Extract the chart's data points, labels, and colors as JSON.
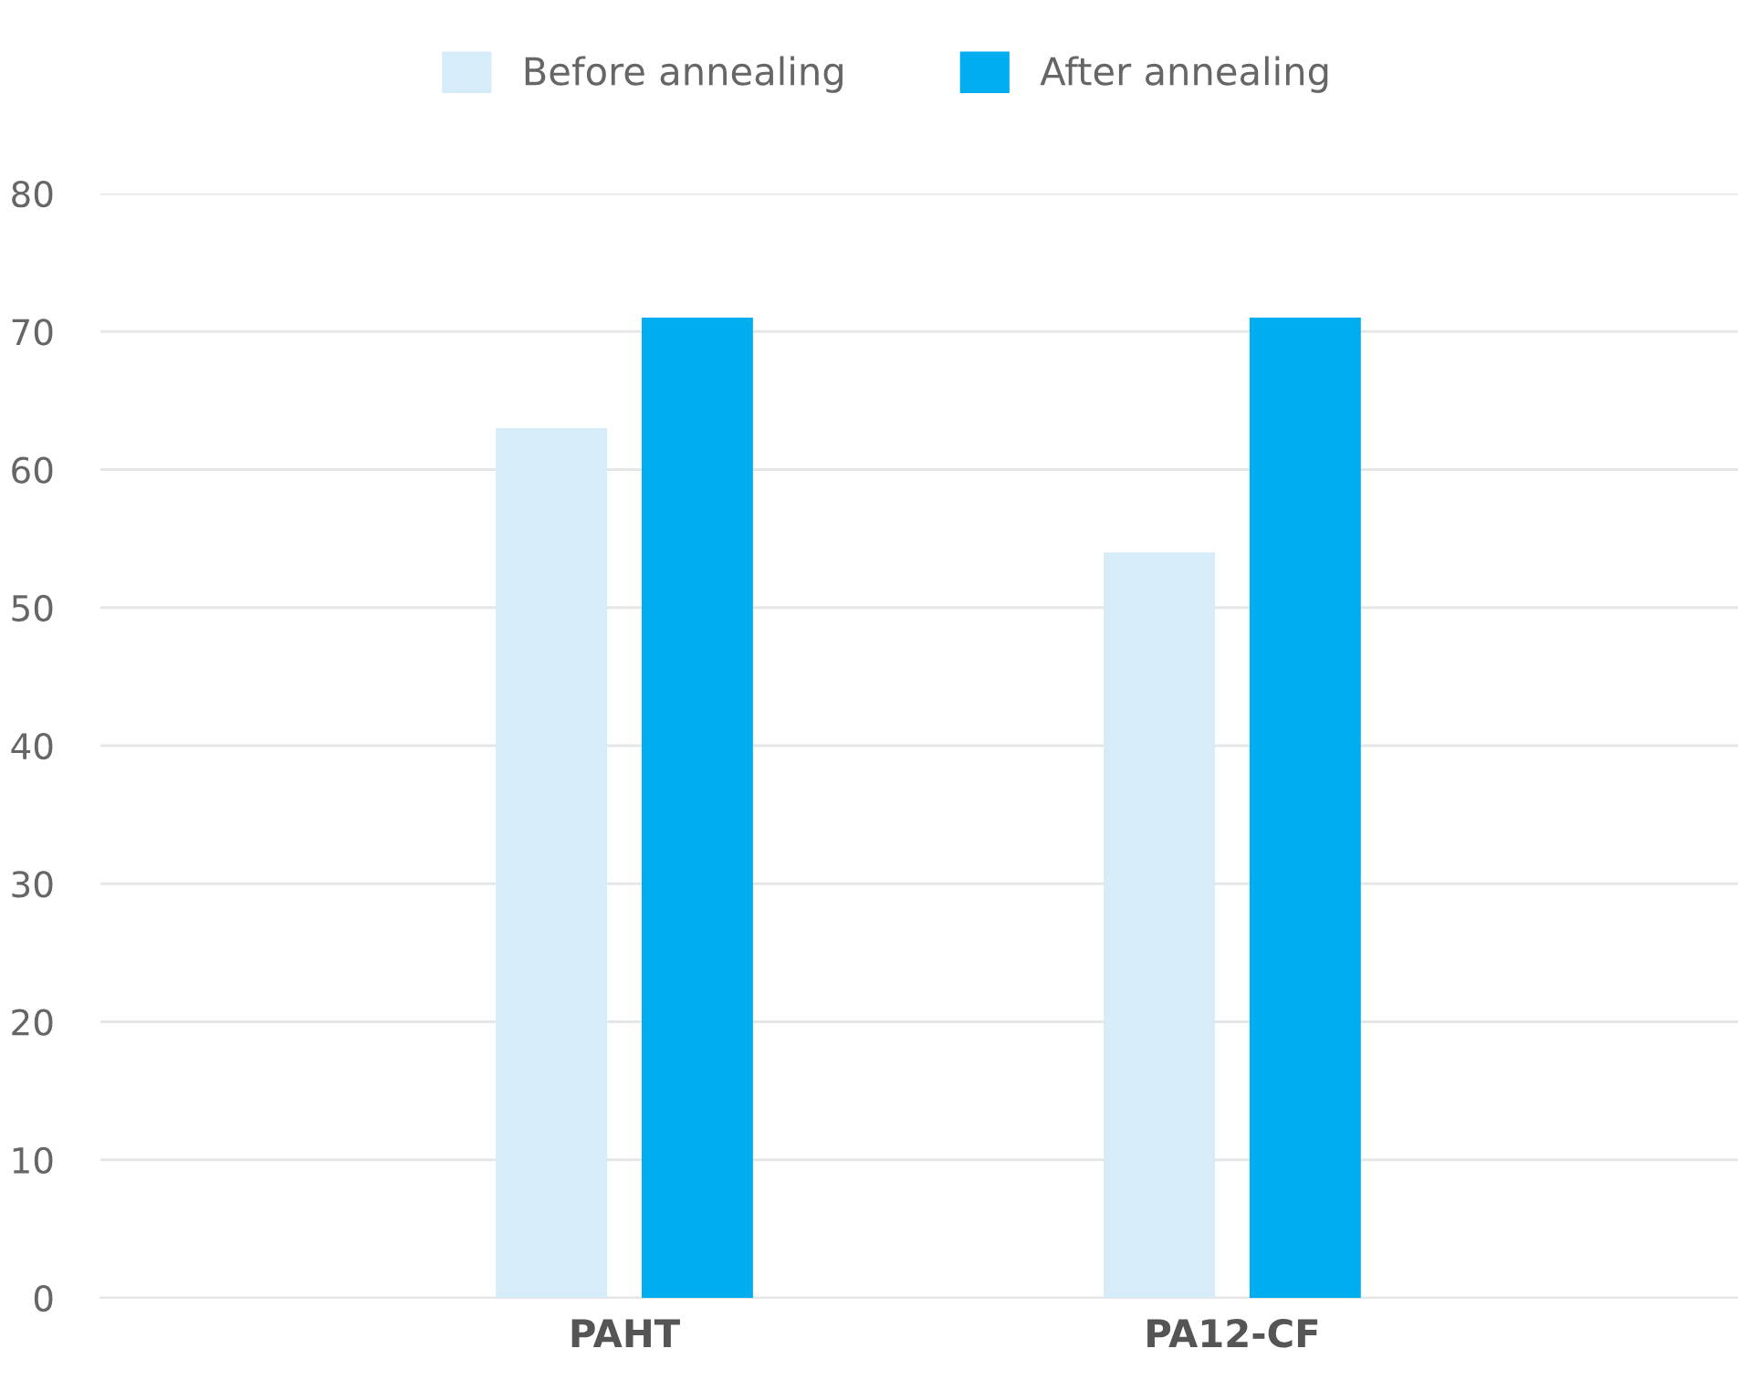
{
  "chart_data": {
    "type": "bar",
    "categories": [
      "PAHT",
      "PA12-CF"
    ],
    "series": [
      {
        "name": "Before annealing",
        "color": "#d6ecf9",
        "values": [
          63,
          54
        ]
      },
      {
        "name": "After annealing",
        "color": "#00aeef",
        "values": [
          71,
          71
        ]
      }
    ],
    "ylim": [
      0,
      80
    ],
    "yticks": [
      0,
      10,
      20,
      30,
      40,
      50,
      60,
      70,
      80
    ],
    "grid": "y",
    "legend": "top"
  }
}
